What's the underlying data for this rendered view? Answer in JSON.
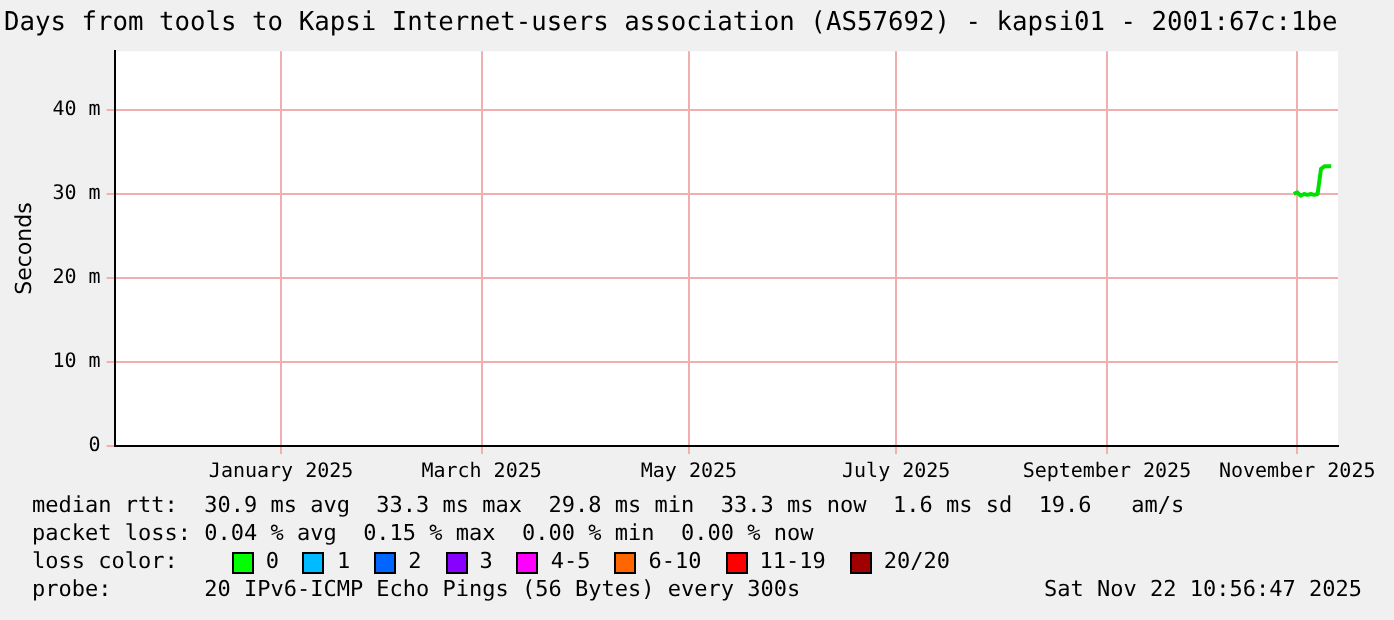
{
  "chart_data": {
    "type": "line",
    "title": "Days from tools to Kapsi Internet-users association (AS57692) - kapsi01 - 2001:67c:1be",
    "ylabel": "Seconds",
    "x": [
      "2025-11-09",
      "2025-11-10",
      "2025-11-11",
      "2025-11-12",
      "2025-11-13",
      "2025-11-14",
      "2025-11-15",
      "2025-11-16",
      "2025-11-17",
      "2025-11-18",
      "2025-11-19",
      "2025-11-20"
    ],
    "series": [
      {
        "color": "#00e000",
        "values": [
          30,
          30.2,
          29.8,
          30,
          29.9,
          30,
          29.9,
          30,
          33,
          33.3,
          33.3,
          33.3
        ]
      }
    ],
    "xlim": [
      "2024-11-27",
      "2025-11-22"
    ],
    "xticks": [
      {
        "value": "2025-01-15",
        "label": "January 2025"
      },
      {
        "value": "2025-03-15",
        "label": "March 2025"
      },
      {
        "value": "2025-05-15",
        "label": "May 2025"
      },
      {
        "value": "2025-07-15",
        "label": "July 2025"
      },
      {
        "value": "2025-09-15",
        "label": "September 2025"
      },
      {
        "value": "2025-11-10",
        "label": "November 2025"
      }
    ],
    "ylim": [
      0,
      47
    ],
    "yticks": [
      {
        "value": 0,
        "label": "0"
      },
      {
        "value": 10,
        "label": "10 m"
      },
      {
        "value": 20,
        "label": "20 m"
      },
      {
        "value": 30,
        "label": "30 m"
      },
      {
        "value": 40,
        "label": "40 m"
      }
    ],
    "grid": true,
    "legend": false,
    "marker": "none",
    "line_style": "solid",
    "annotations": [
      "median rtt:  30.9 ms avg  33.3 ms max  29.8 ms min  33.3 ms now  1.6 ms sd  19.6   am/s",
      "packet loss: 0.04 % avg  0.15 % max  0.00 % min  0.00 % now",
      "loss color:",
      "0",
      "1",
      "2",
      "3",
      "4-5",
      "6-10",
      "11-19",
      "20/20",
      "probe:       20 IPv6-ICMP Echo Pings (56 Bytes) every 300s",
      "Sat Nov 22 10:56:47 2025"
    ]
  }
}
